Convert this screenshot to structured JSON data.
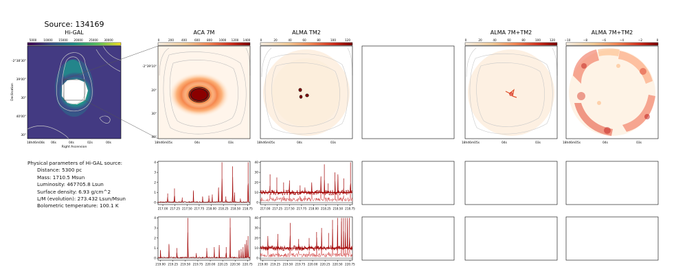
{
  "title": "Source: 134169",
  "panels": {
    "higal": {
      "title": "Hi-GAL",
      "colorbar_ticks": [
        "5000",
        "10000",
        "15000",
        "20000",
        "25000",
        "30000"
      ],
      "yticks": [
        "-2°38'30\"",
        "39'00\"",
        "30\"",
        "40'00\"",
        "30\""
      ],
      "xticks": [
        "18h46m08s",
        "06s",
        "04s",
        "02s",
        "00s"
      ],
      "xlabel": "Right Ascension",
      "ylabel": "Declination"
    },
    "aca7m": {
      "title": "ACA 7M",
      "colorbar_ticks": [
        "0",
        "200",
        "400",
        "600",
        "800",
        "1000",
        "1200",
        "1400"
      ],
      "yticks": [
        "-2°39'10\"",
        "20\"",
        "30\"",
        "40\""
      ],
      "xticks": [
        "18h46m05s",
        "04s",
        "03s"
      ]
    },
    "tm2": {
      "title": "ALMA TM2",
      "colorbar_ticks": [
        "0",
        "20",
        "40",
        "60",
        "80",
        "100",
        "120"
      ],
      "xticks": [
        "18h46m05s",
        "04s",
        "03s"
      ]
    },
    "combo1": {
      "title": "ALMA 7M+TM2",
      "colorbar_ticks": [
        "0",
        "20",
        "40",
        "60",
        "80",
        "100",
        "120"
      ],
      "xticks": [
        "18h46m05s",
        "04s",
        "03s"
      ]
    },
    "combo2": {
      "title": "ALMA 7M+TM2",
      "colorbar_ticks": [
        "−10",
        "−8",
        "−6",
        "−4",
        "−2",
        "0"
      ],
      "xticks": [
        "18h46m05s",
        "04s",
        "03s"
      ]
    }
  },
  "physical_parameters": {
    "heading": "Physical parameters of Hi-GAL source:",
    "distance": "Distance: 5300 pc",
    "mass": "Mass: 1710.5 Msun",
    "luminosity": "Luminosity: 467705.8 Lsun",
    "surface_density": "Surface density: 6.93 g/cm^2",
    "lm": "L/M (evolution): 273.432 Lsun/Msun",
    "tbol": "Bolometric temperature: 100.1 K"
  },
  "colors": {
    "spectrum": "#a00000",
    "spectrum_light": "#d04040",
    "contour": "#999999",
    "viridis_dark": "#440154",
    "ysorange": "#fdd9a0",
    "cream": "#fff5eb"
  },
  "chart_data": [
    {
      "type": "line",
      "name": "spectrum-aca-low",
      "xlim": [
        216.9,
        218.8
      ],
      "ylim": [
        -0.2,
        4.1
      ],
      "xticks": [
        217.0,
        217.25,
        217.5,
        217.75,
        218.0,
        218.25,
        218.5,
        218.75
      ],
      "xtick_labels": [
        "217.00",
        "217.25",
        "217.50",
        "217.75",
        "218.00",
        "218.25",
        "218.50",
        "218.75"
      ],
      "yticks": [
        0,
        1,
        2,
        3,
        4
      ],
      "baseline": 0.05,
      "lines": [
        [
          217.1,
          0.9
        ],
        [
          217.24,
          1.4
        ],
        [
          217.4,
          0.5
        ],
        [
          217.63,
          1.2
        ],
        [
          217.82,
          0.6
        ],
        [
          217.95,
          0.7
        ],
        [
          218.02,
          0.8
        ],
        [
          218.15,
          1.5
        ],
        [
          218.22,
          4.0
        ],
        [
          218.3,
          0.6
        ],
        [
          218.44,
          3.6
        ],
        [
          218.48,
          1.0
        ],
        [
          218.6,
          0.4
        ],
        [
          218.76,
          4.0
        ]
      ]
    },
    {
      "type": "line",
      "name": "spectrum-tm2-low",
      "xlim": [
        216.9,
        218.8
      ],
      "ylim": [
        -2,
        41
      ],
      "xticks": [
        217.0,
        217.25,
        217.5,
        217.75,
        218.0,
        218.25,
        218.5,
        218.75
      ],
      "xtick_labels": [
        "217.00",
        "217.25",
        "217.50",
        "217.75",
        "218.00",
        "218.25",
        "218.50",
        "218.75"
      ],
      "yticks": [
        0,
        10,
        20,
        30,
        40
      ],
      "baseline": 10,
      "lines": [
        [
          217.1,
          28
        ],
        [
          217.24,
          25
        ],
        [
          217.38,
          20
        ],
        [
          217.5,
          22
        ],
        [
          217.72,
          17
        ],
        [
          217.82,
          15
        ],
        [
          217.96,
          20
        ],
        [
          218.15,
          26
        ],
        [
          218.22,
          38
        ],
        [
          218.3,
          19
        ],
        [
          218.44,
          30
        ],
        [
          218.5,
          28
        ],
        [
          218.62,
          24
        ],
        [
          218.76,
          40
        ]
      ]
    },
    {
      "type": "line",
      "name": "spectrum-aca-high",
      "xlim": [
        218.95,
        220.8
      ],
      "ylim": [
        -0.2,
        4.1
      ],
      "xticks": [
        219.0,
        219.25,
        219.5,
        219.75,
        220.0,
        220.25,
        220.5,
        220.75
      ],
      "xtick_labels": [
        "219.00",
        "219.25",
        "219.50",
        "219.75",
        "220.00",
        "220.25",
        "220.50",
        "220.75"
      ],
      "yticks": [
        0,
        1,
        2,
        3,
        4
      ],
      "baseline": 0.05,
      "lines": [
        [
          219.0,
          0.8
        ],
        [
          219.17,
          1.4
        ],
        [
          219.33,
          1.0
        ],
        [
          219.55,
          4.0
        ],
        [
          219.72,
          0.5
        ],
        [
          219.93,
          1.0
        ],
        [
          220.08,
          1.1
        ],
        [
          220.18,
          1.3
        ],
        [
          220.32,
          1.1
        ],
        [
          220.4,
          4.0
        ],
        [
          220.58,
          0.8
        ],
        [
          220.62,
          0.9
        ],
        [
          220.66,
          1.1
        ],
        [
          220.7,
          1.4
        ],
        [
          220.73,
          1.8
        ],
        [
          220.76,
          2.2
        ]
      ]
    },
    {
      "type": "line",
      "name": "spectrum-tm2-high",
      "xlim": [
        218.95,
        220.8
      ],
      "ylim": [
        -2,
        41
      ],
      "xticks": [
        219.0,
        219.25,
        219.5,
        219.75,
        220.0,
        220.25,
        220.5,
        220.75
      ],
      "xtick_labels": [
        "219.00",
        "219.25",
        "219.50",
        "219.75",
        "220.00",
        "220.25",
        "220.50",
        "220.75"
      ],
      "yticks": [
        0,
        10,
        20,
        30,
        40
      ],
      "baseline": 10,
      "lines": [
        [
          219.1,
          22
        ],
        [
          219.3,
          24
        ],
        [
          219.55,
          35
        ],
        [
          219.72,
          19
        ],
        [
          219.93,
          20
        ],
        [
          220.08,
          26
        ],
        [
          220.18,
          30
        ],
        [
          220.32,
          25
        ],
        [
          220.4,
          38
        ],
        [
          220.5,
          40
        ],
        [
          220.58,
          40
        ],
        [
          220.62,
          40
        ],
        [
          220.66,
          40
        ],
        [
          220.7,
          40
        ],
        [
          220.74,
          40
        ]
      ]
    }
  ]
}
